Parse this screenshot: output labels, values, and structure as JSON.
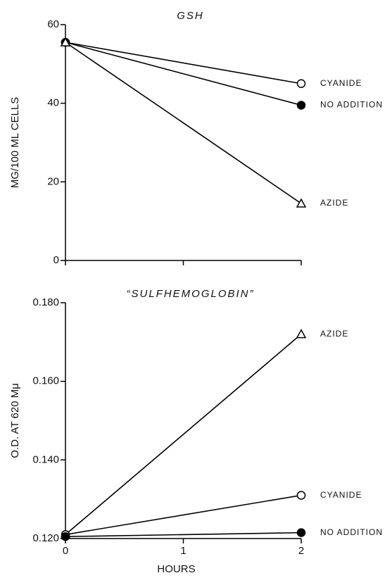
{
  "chart_data": [
    {
      "type": "line",
      "title": "GSH",
      "y_label": "MG/100 ML CELLS",
      "x": [
        0,
        2
      ],
      "xlim": [
        0,
        2
      ],
      "ylim": [
        0,
        60
      ],
      "yticks": [
        0,
        20,
        40,
        60
      ],
      "series": [
        {
          "name": "CYANIDE",
          "color": "#000000",
          "marker": "open-circle",
          "values": [
            55.5,
            45
          ]
        },
        {
          "name": "NO ADDITION",
          "color": "#000000",
          "marker": "filled-circle",
          "values": [
            55.5,
            39.5
          ]
        },
        {
          "name": "AZIDE",
          "color": "#000000",
          "marker": "triangle",
          "values": [
            55.5,
            14.5
          ]
        }
      ]
    },
    {
      "type": "line",
      "title": "“SULFHEMOGLOBIN”",
      "y_label": "O.D. AT 620 Mμ",
      "x_label": "HOURS",
      "x": [
        0,
        2
      ],
      "xlim": [
        0,
        2
      ],
      "xticks": [
        0,
        1,
        2
      ],
      "ylim": [
        0.12,
        0.18
      ],
      "yticks": [
        {
          "value": 0.12,
          "label": "0.120"
        },
        {
          "value": 0.14,
          "label": "0.140"
        },
        {
          "value": 0.16,
          "label": "0.160"
        },
        {
          "value": 0.18,
          "label": "0.180"
        }
      ],
      "series": [
        {
          "name": "AZIDE",
          "color": "#000000",
          "marker": "triangle",
          "values": [
            0.121,
            0.172
          ]
        },
        {
          "name": "CYANIDE",
          "color": "#000000",
          "marker": "open-circle",
          "values": [
            0.121,
            0.131
          ]
        },
        {
          "name": "NO ADDITION",
          "color": "#000000",
          "marker": "filled-circle",
          "values": [
            0.1205,
            0.1215
          ]
        }
      ]
    }
  ]
}
